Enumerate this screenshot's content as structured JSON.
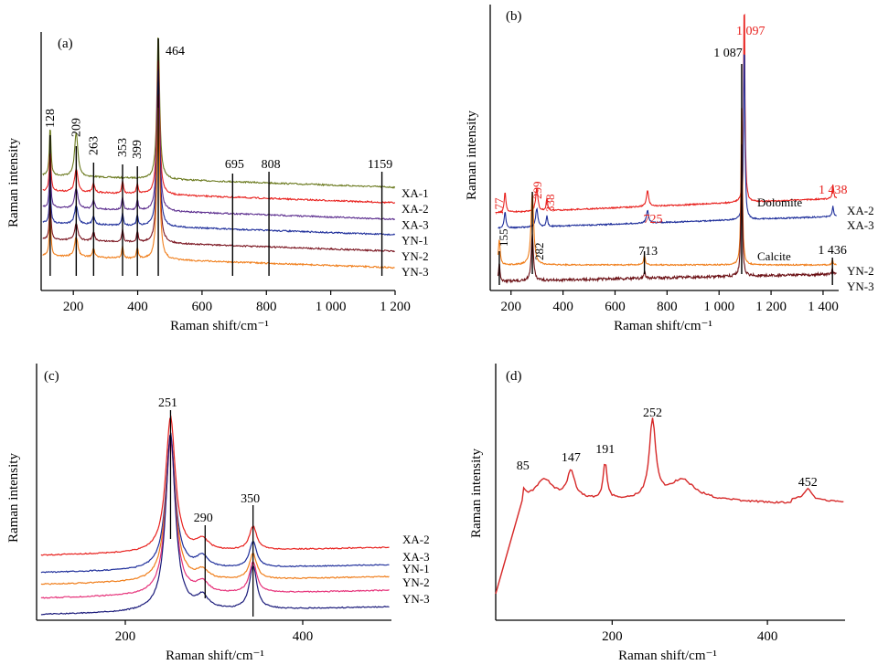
{
  "chart_data": [
    {
      "type": "line",
      "panel_label": "(a)",
      "xlabel": "Raman shift/cm⁻¹",
      "ylabel": "Raman intensity",
      "xlim": [
        100,
        1200
      ],
      "xticks": [
        200,
        400,
        600,
        800,
        1000,
        1200
      ],
      "xtick_labels": [
        "200",
        "400",
        "600",
        "800",
        "1 000",
        "1 200"
      ],
      "peak_labels": [
        "128",
        "209",
        "263",
        "353",
        "399",
        "464",
        "695",
        "808",
        "1159"
      ],
      "peaks": [
        128,
        209,
        263,
        353,
        399,
        464,
        695,
        808,
        1159
      ],
      "series": [
        {
          "name": "",
          "color": "#6b7a1f",
          "baseline": 0.82,
          "peaks": [
            [
              128,
              0.55
            ],
            [
              209,
              0.28
            ],
            [
              464,
              0.82
            ]
          ]
        },
        {
          "name": "XA-1",
          "color": "#e8211e",
          "baseline": 0.71,
          "peaks": [
            [
              128,
              0.5
            ],
            [
              209,
              0.24
            ],
            [
              263,
              0.06
            ],
            [
              353,
              0.08
            ],
            [
              399,
              0.06
            ],
            [
              464,
              0.85
            ]
          ]
        },
        {
          "name": "XA-2",
          "color": "#5b2d8e",
          "baseline": 0.63,
          "peaks": [
            [
              128,
              0.48
            ],
            [
              209,
              0.22
            ],
            [
              263,
              0.05
            ],
            [
              353,
              0.08
            ],
            [
              399,
              0.06
            ],
            [
              464,
              0.88
            ]
          ]
        },
        {
          "name": "XA-3",
          "color": "#1f2f9b",
          "baseline": 0.55,
          "peaks": [
            [
              128,
              0.46
            ],
            [
              209,
              0.2
            ],
            [
              263,
              0.05
            ],
            [
              353,
              0.07
            ],
            [
              399,
              0.05
            ],
            [
              464,
              0.9
            ]
          ]
        },
        {
          "name": "YN-1",
          "color": "#7a1520",
          "baseline": 0.46,
          "peaks": [
            [
              128,
              0.42
            ],
            [
              209,
              0.2
            ],
            [
              263,
              0.05
            ],
            [
              353,
              0.07
            ],
            [
              399,
              0.05
            ],
            [
              464,
              0.92
            ]
          ]
        },
        {
          "name": "YN-2",
          "color": "#f07e1b",
          "baseline": 0.38,
          "peaks": [
            [
              128,
              0.4
            ],
            [
              209,
              0.22
            ],
            [
              263,
              0.05
            ],
            [
              353,
              0.07
            ],
            [
              399,
              0.05
            ],
            [
              464,
              0.94
            ]
          ]
        }
      ],
      "right_labels": [
        "XA-1",
        "XA-2",
        "XA-3",
        "YN-1",
        "YN-2",
        "YN-3"
      ]
    },
    {
      "type": "line",
      "panel_label": "(b)",
      "xlabel": "Raman shift/cm⁻¹",
      "ylabel": "Raman intensity",
      "xlim": [
        120,
        1460
      ],
      "xticks": [
        200,
        400,
        600,
        800,
        1000,
        1200,
        1400
      ],
      "xtick_labels": [
        "200",
        "400",
        "600",
        "800",
        "1 000",
        "1 200",
        "1 400"
      ],
      "annotations": [
        {
          "text": "177",
          "x": 177,
          "color": "#e8211e"
        },
        {
          "text": "299",
          "x": 299,
          "color": "#e8211e"
        },
        {
          "text": "338",
          "x": 338,
          "color": "#e8211e"
        },
        {
          "text": "725",
          "x": 725,
          "color": "#e8211e"
        },
        {
          "text": "1 097",
          "x": 1097,
          "color": "#e8211e"
        },
        {
          "text": "1 438",
          "x": 1438,
          "color": "#e8211e"
        },
        {
          "text": "155",
          "x": 155,
          "color": "#000000"
        },
        {
          "text": "282",
          "x": 282,
          "color": "#000000"
        },
        {
          "text": "713",
          "x": 713,
          "color": "#000000"
        },
        {
          "text": "1 087",
          "x": 1087,
          "color": "#000000"
        },
        {
          "text": "1 436",
          "x": 1436,
          "color": "#000000"
        }
      ],
      "mineral_labels": [
        "Dolomite",
        "Calcite"
      ],
      "series": [
        {
          "name": "XA-2",
          "color": "#e8211e",
          "mineral": "Dolomite",
          "peaks": [
            [
              177,
              0.25
            ],
            [
              299,
              0.3
            ],
            [
              338,
              0.15
            ],
            [
              725,
              0.2
            ],
            [
              1097,
              1.0
            ],
            [
              1438,
              0.15
            ]
          ]
        },
        {
          "name": "XA-3",
          "color": "#1f2f9b",
          "mineral": "Dolomite",
          "peaks": [
            [
              177,
              0.2
            ],
            [
              299,
              0.22
            ],
            [
              338,
              0.12
            ],
            [
              725,
              0.15
            ],
            [
              1097,
              0.95
            ],
            [
              1438,
              0.12
            ]
          ]
        },
        {
          "name": "YN-2",
          "color": "#f07e1b",
          "mineral": "Calcite",
          "peaks": [
            [
              155,
              0.45
            ],
            [
              282,
              0.65
            ],
            [
              713,
              0.12
            ],
            [
              1087,
              0.95
            ],
            [
              1436,
              0.1
            ]
          ]
        },
        {
          "name": "YN-3",
          "color": "#6b1015",
          "mineral": "Calcite",
          "peaks": [
            [
              155,
              0.3
            ],
            [
              282,
              0.4
            ],
            [
              713,
              0.1
            ],
            [
              1087,
              0.9
            ],
            [
              1436,
              0.1
            ]
          ]
        }
      ]
    },
    {
      "type": "line",
      "panel_label": "(c)",
      "xlabel": "Raman shift/cm⁻¹",
      "ylabel": "Raman intensity",
      "xlim": [
        100,
        500
      ],
      "xticks": [
        200,
        400
      ],
      "xtick_labels": [
        "200",
        "400"
      ],
      "peaks": [
        251,
        290,
        350
      ],
      "peak_labels": [
        "251",
        "290",
        "350"
      ],
      "series": [
        {
          "name": "XA-2",
          "color": "#e8211e"
        },
        {
          "name": "XA-3",
          "color": "#1f2f9b"
        },
        {
          "name": "YN-1",
          "color": "#f07e1b"
        },
        {
          "name": "YN-2",
          "color": "#e6327a"
        },
        {
          "name": "YN-3",
          "color": "#1a1a7a"
        }
      ]
    },
    {
      "type": "line",
      "panel_label": "(d)",
      "xlabel": "Raman shift/cm⁻¹",
      "ylabel": "Raman intensity",
      "xlim": [
        50,
        500
      ],
      "xticks": [
        200,
        400
      ],
      "xtick_labels": [
        "200",
        "400"
      ],
      "peaks": [
        85,
        147,
        191,
        252,
        452
      ],
      "peak_labels": [
        "85",
        "147",
        "191",
        "252",
        "452"
      ],
      "series": [
        {
          "name": "",
          "color": "#d62828"
        }
      ]
    }
  ]
}
